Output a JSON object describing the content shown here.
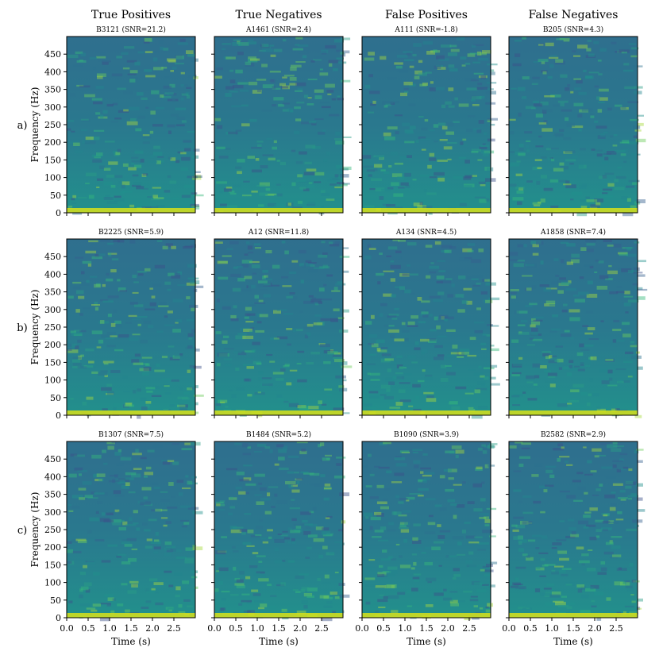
{
  "chart_data": {
    "type": "heatmap",
    "columns": [
      "True Positives",
      "True Negatives",
      "False Positives",
      "False Negatives"
    ],
    "rows": [
      "a)",
      "b)",
      "c)"
    ],
    "ylabel": "Frequency (Hz)",
    "xlabel": "Time (s)",
    "xlim": [
      0,
      3.0
    ],
    "ylim": [
      0,
      500
    ],
    "xticks": [
      0.0,
      0.5,
      1.0,
      1.5,
      2.0,
      2.5
    ],
    "xtick_labels": [
      "0.0",
      "0.5",
      "1.0",
      "1.5",
      "2.0",
      "2.5"
    ],
    "yticks": [
      0,
      50,
      100,
      150,
      200,
      250,
      300,
      350,
      400,
      450
    ],
    "ytick_labels": [
      "0",
      "50",
      "100",
      "150",
      "200",
      "250",
      "300",
      "350",
      "400",
      "450"
    ],
    "colormap": "viridis",
    "panels": [
      {
        "row": 0,
        "col": 0,
        "title": "B3121 (SNR=21.2)"
      },
      {
        "row": 0,
        "col": 1,
        "title": "A1461 (SNR=2.4)"
      },
      {
        "row": 0,
        "col": 2,
        "title": "A111 (SNR=-1.8)"
      },
      {
        "row": 0,
        "col": 3,
        "title": "B205 (SNR=4.3)"
      },
      {
        "row": 1,
        "col": 0,
        "title": "B2225 (SNR=5.9)"
      },
      {
        "row": 1,
        "col": 1,
        "title": "A12 (SNR=11.8)"
      },
      {
        "row": 1,
        "col": 2,
        "title": "A134 (SNR=4.5)"
      },
      {
        "row": 1,
        "col": 3,
        "title": "A1858 (SNR=7.4)"
      },
      {
        "row": 2,
        "col": 0,
        "title": "B1307 (SNR=7.5)"
      },
      {
        "row": 2,
        "col": 1,
        "title": "B1484 (SNR=5.2)"
      },
      {
        "row": 2,
        "col": 2,
        "title": "B1090 (SNR=3.9)"
      },
      {
        "row": 2,
        "col": 3,
        "title": "B2582 (SNR=2.9)"
      }
    ]
  }
}
